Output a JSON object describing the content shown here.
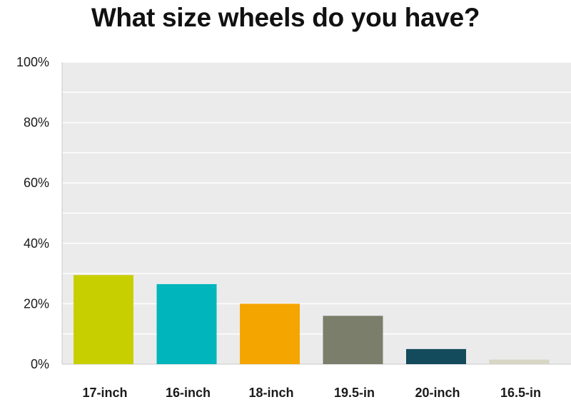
{
  "chart_data": {
    "type": "bar",
    "title": "What size wheels do you have?",
    "categories": [
      "17-inch",
      "16-inch",
      "18-inch",
      "19.5-in",
      "20-inch",
      "16.5-in"
    ],
    "values": [
      29.5,
      26.5,
      20,
      16,
      5,
      1.5
    ],
    "colors": [
      "#c8cf00",
      "#00b5bb",
      "#f5a500",
      "#7a7e6a",
      "#134a5c",
      "#d7d6c4"
    ],
    "yticks": [
      "0%",
      "20%",
      "40%",
      "60%",
      "80%",
      "100%"
    ],
    "ylim": [
      0,
      100
    ],
    "xlabel": "",
    "ylabel": "",
    "grid": true,
    "background": "#ebebeb"
  }
}
